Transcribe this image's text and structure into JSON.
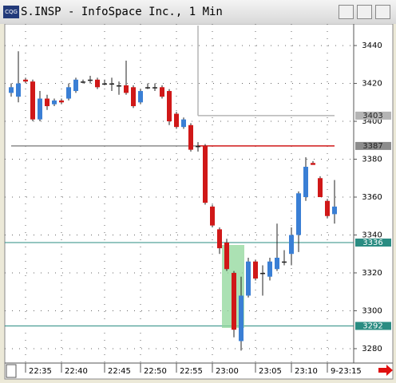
{
  "chart_data": {
    "type": "candlestick",
    "title": "S.INSP - InfoSpace Inc., 1 Min",
    "categories": [
      null,
      null,
      "22:35",
      null,
      null,
      null,
      null,
      "22:40",
      null,
      null,
      null,
      null,
      null,
      "22:45",
      null,
      null,
      null,
      null,
      "22:50",
      null,
      null,
      null,
      null,
      "22:55",
      null,
      null,
      null,
      null,
      "23:00",
      null,
      null,
      null,
      null,
      null,
      "23:05",
      null,
      null,
      null,
      null,
      "23:10",
      null,
      null,
      null,
      null,
      "9-23:15",
      null
    ],
    "open": [
      3415,
      3413,
      3422,
      3421,
      3401,
      3412,
      3409,
      3411,
      3412,
      3416,
      3421,
      3422,
      3422,
      3420,
      3420,
      3419,
      3419,
      3418,
      3410,
      3418,
      3418,
      3418,
      3416,
      3404,
      3397,
      3398,
      3387,
      3387,
      3355,
      3343,
      3336,
      3320,
      3284,
      3308,
      3326,
      3320,
      3318,
      3322,
      3326,
      3330,
      3340,
      3360,
      3378,
      3370,
      3358,
      3351
    ],
    "high": [
      3420,
      3437,
      3423,
      3422,
      3416,
      3414,
      3412,
      3412,
      3420,
      3423,
      3422,
      3424,
      3423,
      3422,
      3423,
      3421,
      3432,
      3419,
      3417,
      3420,
      3420,
      3419,
      3417,
      3405,
      3402,
      3399,
      3389,
      3388,
      3356,
      3344,
      3338,
      3321,
      3318,
      3328,
      3327,
      3324,
      3328,
      3346,
      3332,
      3344,
      3363,
      3381,
      3379,
      3371,
      3359,
      3369
    ],
    "low": [
      3413,
      3410,
      3420,
      3400,
      3400,
      3406,
      3408,
      3409,
      3411,
      3415,
      3420,
      3420,
      3417,
      3419,
      3416,
      3414,
      3414,
      3407,
      3409,
      3417,
      3416,
      3412,
      3398,
      3396,
      3396,
      3384,
      3384,
      3356,
      3344,
      3330,
      3321,
      3286,
      3279,
      3307,
      3316,
      3308,
      3316,
      3321,
      3324,
      3324,
      3331,
      3358,
      3377,
      3360,
      3349,
      3346
    ],
    "close": [
      3418,
      3420,
      3421,
      3401,
      3412,
      3408,
      3411,
      3410,
      3418,
      3422,
      3421,
      3422,
      3418,
      3420,
      3420,
      3419,
      3415,
      3408,
      3416,
      3418,
      3418,
      3413,
      3400,
      3397,
      3401,
      3385,
      3387,
      3357,
      3345,
      3333,
      3322,
      3290,
      3308,
      3326,
      3317,
      3320,
      3326,
      3328,
      3326,
      3340,
      3362,
      3376,
      3377,
      3360,
      3350,
      3355
    ],
    "up_color": "#3a7fd5",
    "down_color": "#d01818",
    "ylim": [
      3272.4,
      3451.4
    ],
    "yticks": [
      3280,
      3300,
      3320,
      3340,
      3360,
      3380,
      3400,
      3420,
      3440
    ],
    "grid": true,
    "levels": [
      3403,
      3387,
      3336,
      3292
    ],
    "level_colors": [
      "#b4b4b4",
      "#8c8c8c",
      "#2a8c82",
      "#2a8c82"
    ]
  }
}
